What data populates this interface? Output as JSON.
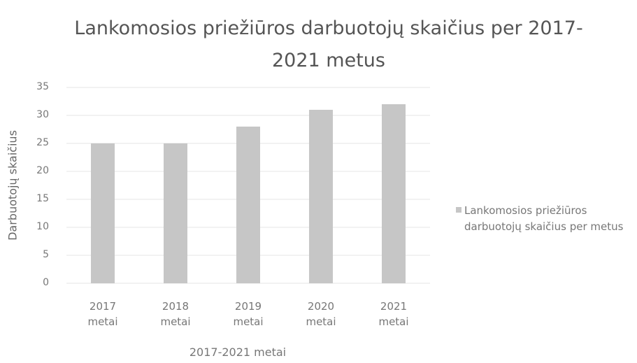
{
  "chart_data": {
    "type": "bar",
    "title": "Lankomosios priežiūros darbuotojų skaičius per 2017-2021 metus",
    "x_label": "2017-2021 metai",
    "y_label": "Darbuotojų skaičius",
    "categories": [
      "2017 metai",
      "2018 metai",
      "2019 metai",
      "2020 metai",
      "2021 metai"
    ],
    "series": [
      {
        "name": "Lankomosios priežiūros darbuotojų skaičius per metus",
        "color": "#c6c6c6",
        "values": [
          25,
          25,
          28,
          31,
          32
        ]
      }
    ],
    "ylim": [
      0,
      35
    ],
    "yticks": [
      0,
      5,
      10,
      15,
      20,
      25,
      30,
      35
    ],
    "grid": true,
    "legend": "right"
  }
}
